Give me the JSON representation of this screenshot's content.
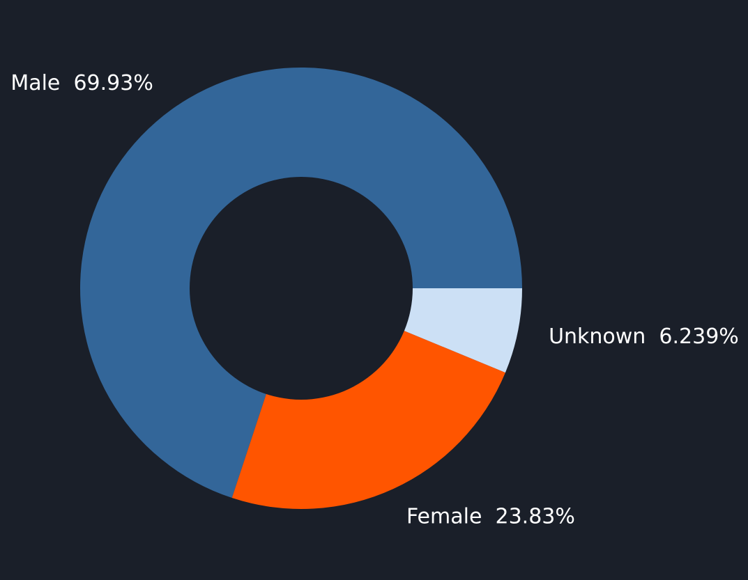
{
  "chart_data": {
    "type": "pie",
    "style": "donut",
    "categories": [
      "Male",
      "Female",
      "Unknown"
    ],
    "values": [
      69.93,
      23.83,
      6.239
    ],
    "labels": [
      "Male  69.93%",
      "Female  23.83%",
      "Unknown  6.239%"
    ],
    "colors": [
      "#336699",
      "#ff5500",
      "#cce0f5"
    ],
    "background": "#1a1f29",
    "legend": "none",
    "title": ""
  }
}
